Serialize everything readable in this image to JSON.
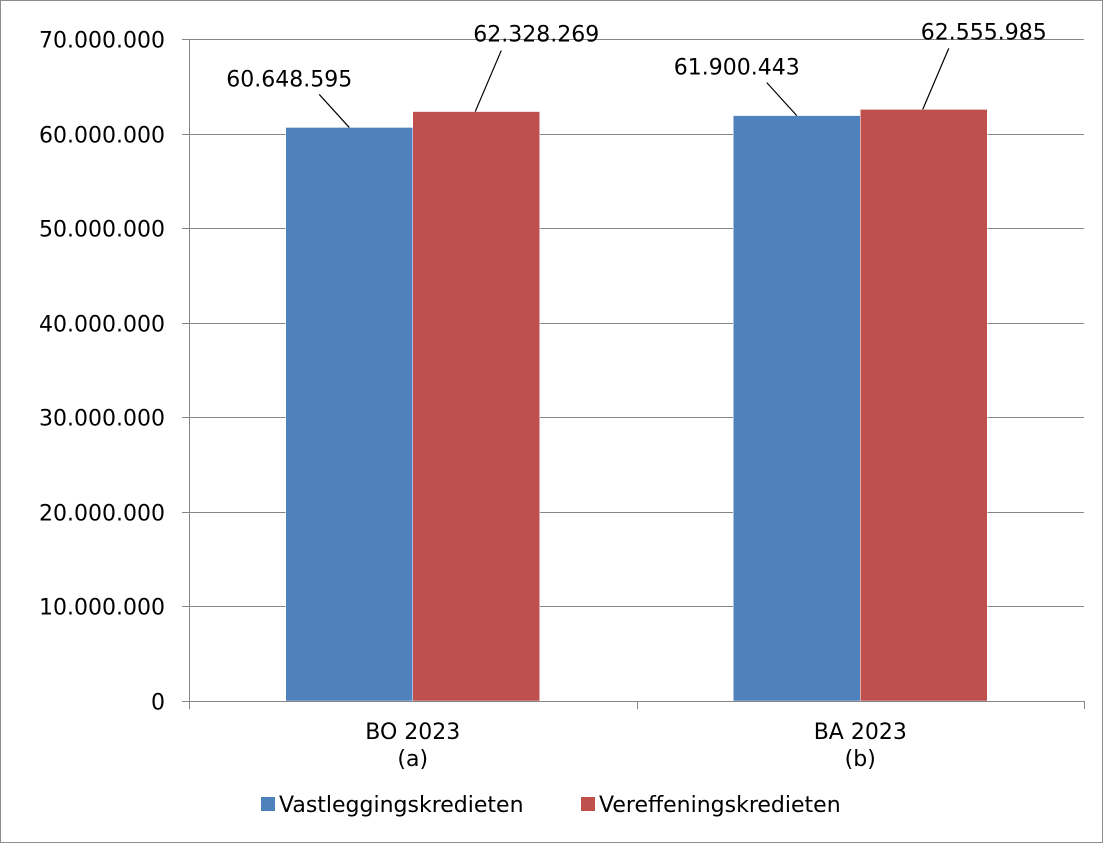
{
  "chart_data": {
    "type": "bar",
    "categories": [
      [
        "BO 2023",
        "(a)"
      ],
      [
        "BA 2023",
        "(b)"
      ]
    ],
    "series": [
      {
        "name": "Vastleggingskredieten",
        "color": "#4f81bd",
        "values": [
          60648595,
          61900443
        ],
        "labels": [
          "60.648.595",
          "61.900.443"
        ]
      },
      {
        "name": "Vereffeningskredieten",
        "color": "#c0504d",
        "values": [
          62328269,
          62555985
        ],
        "labels": [
          "62.328.269",
          "62.555.985"
        ]
      }
    ],
    "ylim": [
      0,
      70000000
    ],
    "yticks": [
      0,
      10000000,
      20000000,
      30000000,
      40000000,
      50000000,
      60000000,
      70000000
    ],
    "ytick_labels": [
      "0",
      "10.000.000",
      "20.000.000",
      "30.000.000",
      "40.000.000",
      "50.000.000",
      "60.000.000",
      "70.000.000"
    ],
    "grid": true,
    "legend_position": "bottom",
    "gridline_color": "#868686",
    "axis_color": "#868686"
  }
}
